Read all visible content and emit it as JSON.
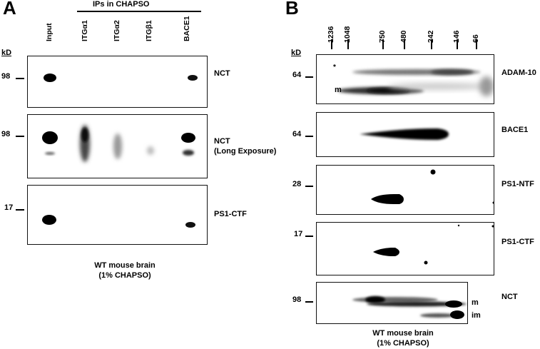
{
  "panel_a": {
    "letter": "A",
    "header": "IPs in CHAPSO",
    "lanes": [
      "Input",
      "ITGα1",
      "ITGα2",
      "ITGβ1",
      "BACE1"
    ],
    "unit": "kD",
    "markers": [
      "98",
      "98",
      "17"
    ],
    "row_labels": [
      "NCT",
      "NCT",
      "(Long Exposure)",
      "PS1-CTF"
    ],
    "caption_line1": "WT mouse brain",
    "caption_line2": "(1% CHAPSO)"
  },
  "panel_b": {
    "letter": "B",
    "sizes": [
      "1236",
      "1048",
      "750",
      "480",
      "242",
      "146",
      "66"
    ],
    "unit": "kD",
    "markers": [
      "64",
      "64",
      "28",
      "17",
      "98"
    ],
    "row_labels": [
      "ADAM-10",
      "BACE1",
      "PS1-NTF",
      "PS1-CTF",
      "NCT"
    ],
    "band_labels": {
      "star": "*",
      "m1": "m",
      "m2": "m",
      "im": "im"
    },
    "caption_line1": "WT mouse brain",
    "caption_line2": "(1% CHAPSO)"
  }
}
